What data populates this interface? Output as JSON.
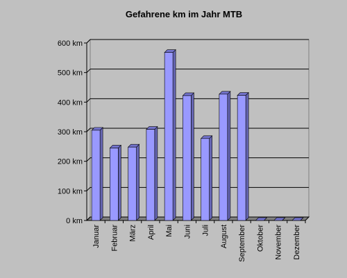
{
  "chart_data": {
    "type": "bar3d",
    "title": "Gefahrene km im Jahr MTB",
    "categories": [
      "Januar",
      "Februar",
      "März",
      "April",
      "Mai",
      "Juni",
      "Juli",
      "August",
      "September",
      "Oktober",
      "November",
      "Dezember"
    ],
    "values": [
      305,
      245,
      248,
      308,
      568,
      422,
      277,
      427,
      423,
      0,
      0,
      0
    ],
    "color": "#9999ff",
    "ylim": [
      0,
      600
    ],
    "yticks": [
      {
        "value": 0,
        "label": "0 km"
      },
      {
        "value": 100,
        "label": "100 km"
      },
      {
        "value": 200,
        "label": "200 km"
      },
      {
        "value": 300,
        "label": "300 km"
      },
      {
        "value": 400,
        "label": "400 km"
      },
      {
        "value": 500,
        "label": "500 km"
      },
      {
        "value": 600,
        "label": "600 km"
      }
    ],
    "grid": true
  }
}
